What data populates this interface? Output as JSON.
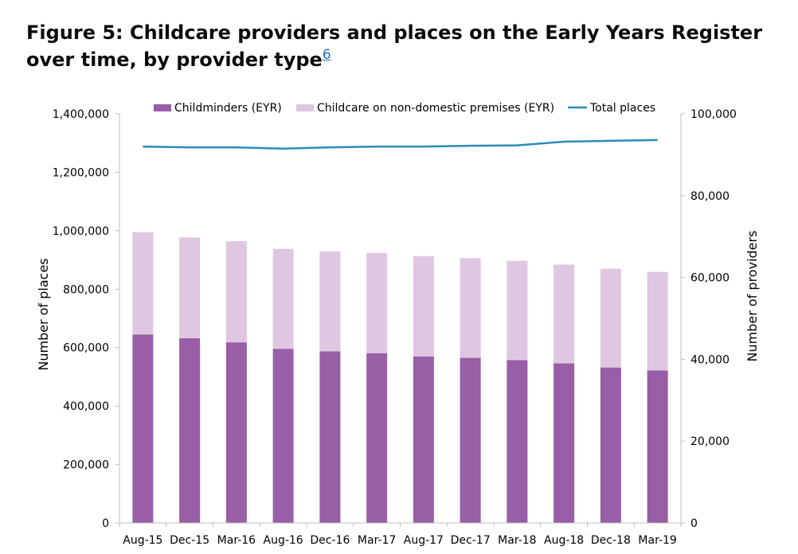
{
  "figure": {
    "title": "Figure 5: Childcare providers and places on the Early Years Register over time, by provider type",
    "footnote_link": "6"
  },
  "chart_data": {
    "type": "bar",
    "categories": [
      "Aug-15",
      "Dec-15",
      "Mar-16",
      "Aug-16",
      "Dec-16",
      "Mar-17",
      "Aug-17",
      "Dec-17",
      "Mar-18",
      "Aug-18",
      "Dec-18",
      "Mar-19"
    ],
    "stacked": true,
    "series": [
      {
        "name": "Childminders (EYR)",
        "kind": "bar",
        "axis": "left",
        "color": "#985ea6",
        "values": [
          645000,
          632000,
          618000,
          596000,
          587000,
          581000,
          570000,
          565000,
          557000,
          546000,
          532000,
          522000
        ]
      },
      {
        "name": "Childcare on non-domestic premises (EYR)",
        "kind": "bar",
        "axis": "left",
        "color": "#dfc6e1",
        "values": [
          350000,
          345000,
          346000,
          342000,
          342000,
          343000,
          343000,
          341000,
          340000,
          338000,
          338000,
          337000
        ]
      },
      {
        "name": "Total places",
        "kind": "line",
        "axis": "right",
        "color": "#2a8cb8",
        "values": [
          92000,
          91800,
          91800,
          91500,
          91800,
          92000,
          92000,
          92200,
          92300,
          93200,
          93400,
          93600
        ]
      }
    ],
    "y_left": {
      "label": "Number of places",
      "min": 0,
      "max": 1400000,
      "ticks": [
        "0",
        "200,000",
        "400,000",
        "600,000",
        "800,000",
        "1,000,000",
        "1,200,000",
        "1,400,000"
      ]
    },
    "y_right": {
      "label": "Number of providers",
      "min": 0,
      "max": 100000,
      "ticks": [
        "0",
        "20,000",
        "40,000",
        "60,000",
        "80,000",
        "100,000"
      ]
    },
    "legend_position": "top",
    "grid": false
  }
}
